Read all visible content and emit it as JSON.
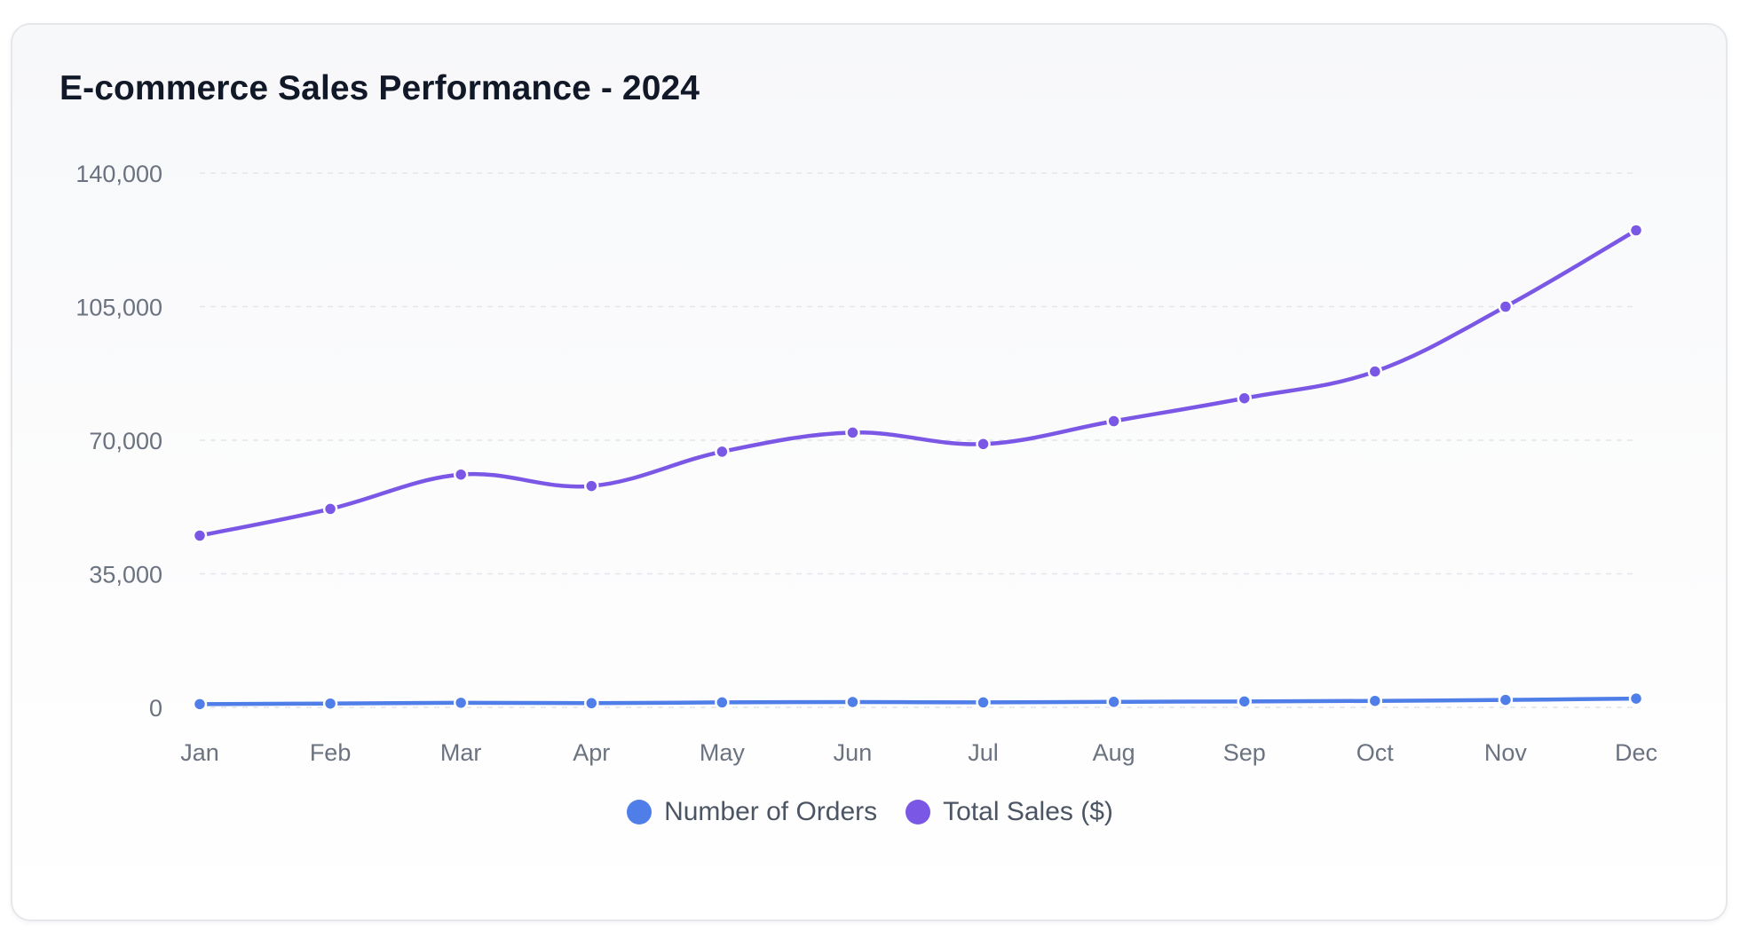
{
  "chart_data": {
    "type": "line",
    "title": "E-commerce Sales Performance - 2024",
    "xlabel": "",
    "ylabel": "",
    "categories": [
      "Jan",
      "Feb",
      "Mar",
      "Apr",
      "May",
      "Jun",
      "Jul",
      "Aug",
      "Sep",
      "Oct",
      "Nov",
      "Dec"
    ],
    "ylim": [
      0,
      140000
    ],
    "yticks": [
      0,
      35000,
      70000,
      105000,
      140000
    ],
    "ytick_labels": [
      "0",
      "35,000",
      "70,000",
      "105,000",
      "140,000"
    ],
    "grid": "horizontal dashed",
    "legend_position": "bottom-center",
    "series": [
      {
        "name": "Number of Orders",
        "color": "#4f7ee8",
        "values": [
          850,
          1000,
          1200,
          1100,
          1300,
          1400,
          1300,
          1450,
          1550,
          1700,
          1950,
          2300
        ]
      },
      {
        "name": "Total Sales ($)",
        "color": "#7b57e6",
        "values": [
          45000,
          52000,
          61000,
          58000,
          67000,
          72000,
          69000,
          75000,
          81000,
          88000,
          105000,
          125000
        ]
      }
    ]
  }
}
